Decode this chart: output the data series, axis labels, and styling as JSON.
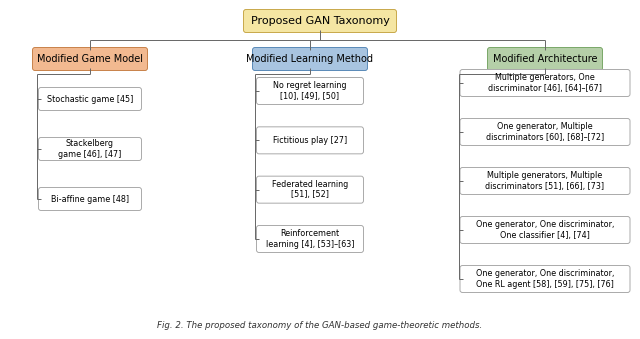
{
  "title": "Proposed GAN Taxonomy",
  "title_color": "#f5e6a3",
  "title_border": "#c8a84a",
  "bg_color": "#ffffff",
  "caption": "Fig. 2. The proposed taxonomy of the GAN-based game-theoretic methods.",
  "categories": [
    {
      "label": "Modified Game Model",
      "color": "#f2b990",
      "border": "#c8824a"
    },
    {
      "label": "Modified Learning Method",
      "color": "#a8c4e0",
      "border": "#5a8ab8"
    },
    {
      "label": "Modified Architecture",
      "color": "#b5cfa8",
      "border": "#7aa868"
    }
  ],
  "left_items": [
    "Stochastic game [45]",
    "Stackelberg\ngame [46], [47]",
    "Bi-affine game [48]"
  ],
  "middle_items": [
    "No regret learning\n[10], [49], [50]",
    "Fictitious play [27]",
    "Federated learning\n[51], [52]",
    "Reinforcement\nlearning [4], [53]–[63]"
  ],
  "right_items": [
    "Multiple generators, One\ndiscriminator [46], [64]–[67]",
    "One generator, Multiple\ndiscriminators [60], [68]–[72]",
    "Multiple generators, Multiple\ndiscriminators [51], [66], [73]",
    "One generator, One discriminator,\nOne classifier [4], [74]",
    "One generator, One discriminator,\nOne RL agent [58], [59], [75], [76]"
  ],
  "leaf_box_color": "#ffffff",
  "leaf_box_border": "#aaaaaa",
  "line_color": "#666666",
  "font_size": 5.8,
  "cat_font_size": 7.0,
  "title_font_size": 8.0
}
